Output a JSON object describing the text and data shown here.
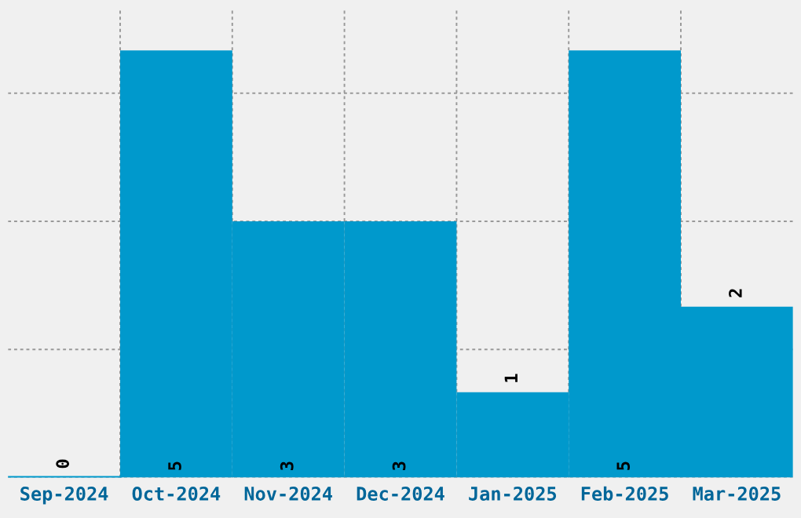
{
  "chart_data": {
    "type": "bar",
    "categories": [
      "Sep-2024",
      "Oct-2024",
      "Nov-2024",
      "Dec-2024",
      "Jan-2025",
      "Feb-2025",
      "Mar-2025"
    ],
    "values": [
      0,
      5,
      3,
      3,
      1,
      5,
      2
    ],
    "color": "#0099cc",
    "data_labels": true,
    "grid": true,
    "tick_labels": "x"
  }
}
